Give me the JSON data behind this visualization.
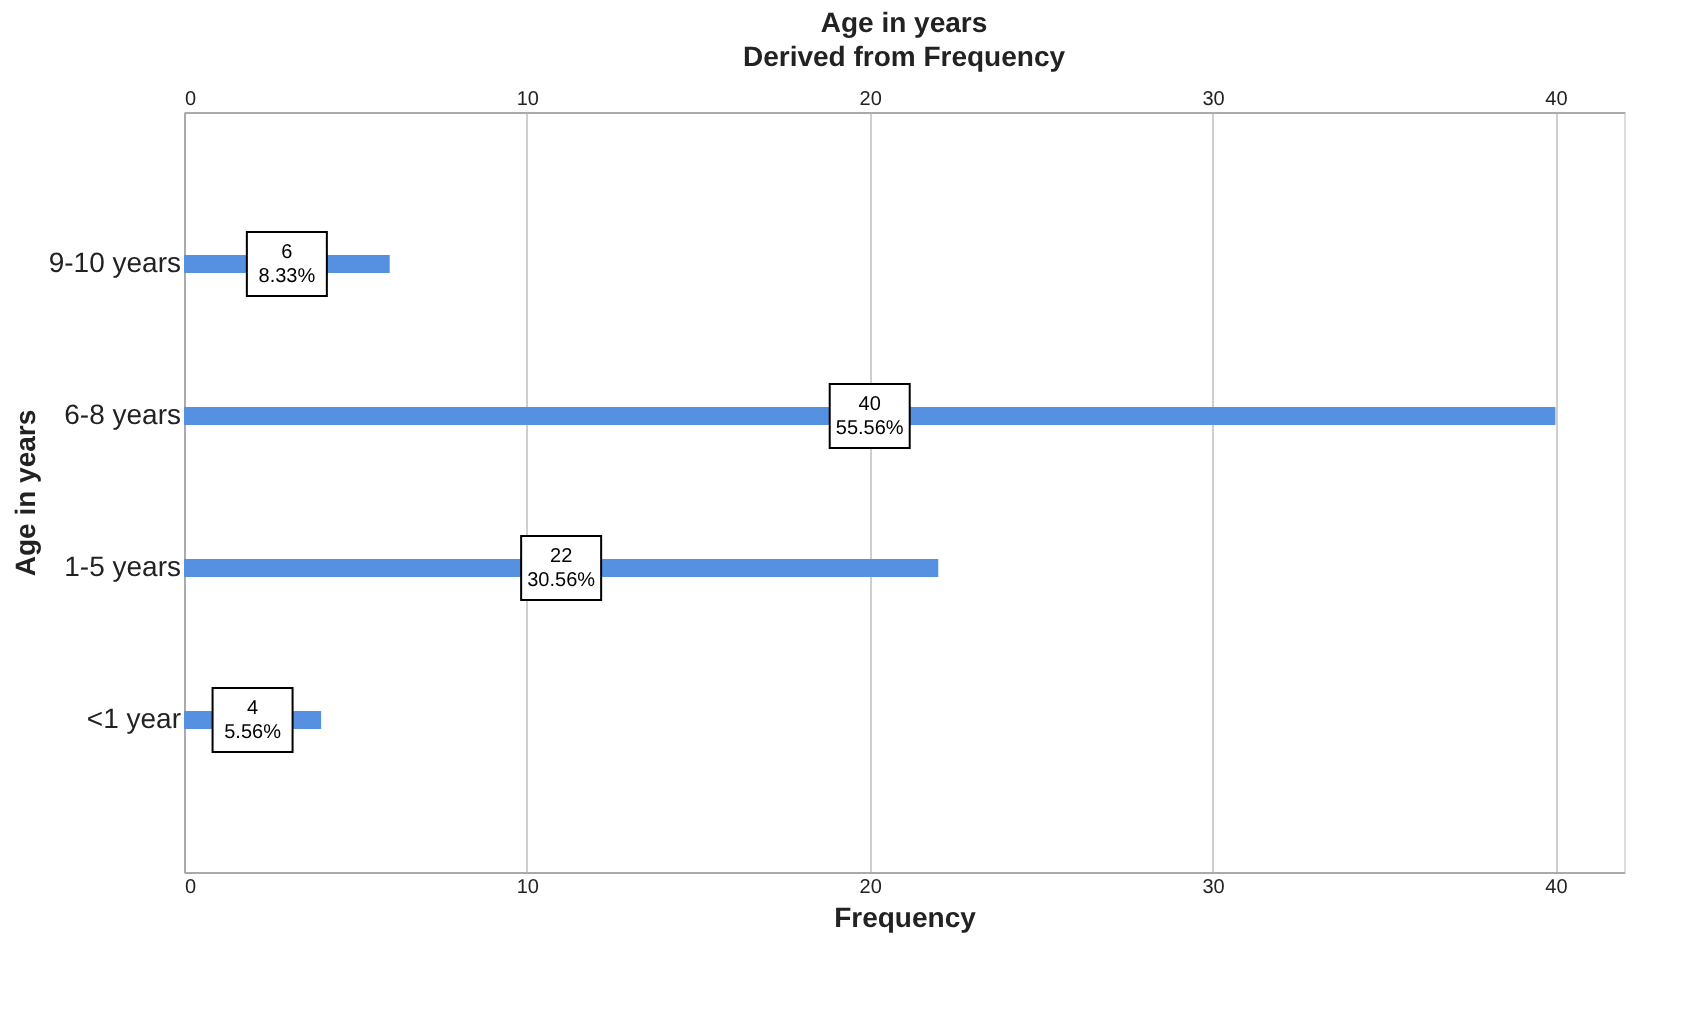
{
  "chart_data": {
    "type": "bar",
    "orientation": "horizontal",
    "title": "Age in years",
    "subtitle": "Derived from Frequency",
    "xlabel": "Frequency",
    "ylabel": "Age in years",
    "categories": [
      "9-10 years",
      "6-8 years",
      "1-5 years",
      "<1 year"
    ],
    "values": [
      6,
      40,
      22,
      4
    ],
    "value_labels": [
      "6\n8.33%",
      "40\n55.56%",
      "22\n30.56%",
      "4\n5.56%"
    ],
    "color": "#5591e0",
    "xlim": [
      0,
      42
    ],
    "xticks": [
      0,
      10,
      20,
      30,
      40
    ],
    "x2lim": [
      0,
      42
    ],
    "x2ticks": [
      0,
      10,
      20,
      30,
      40
    ],
    "grid": "x"
  }
}
